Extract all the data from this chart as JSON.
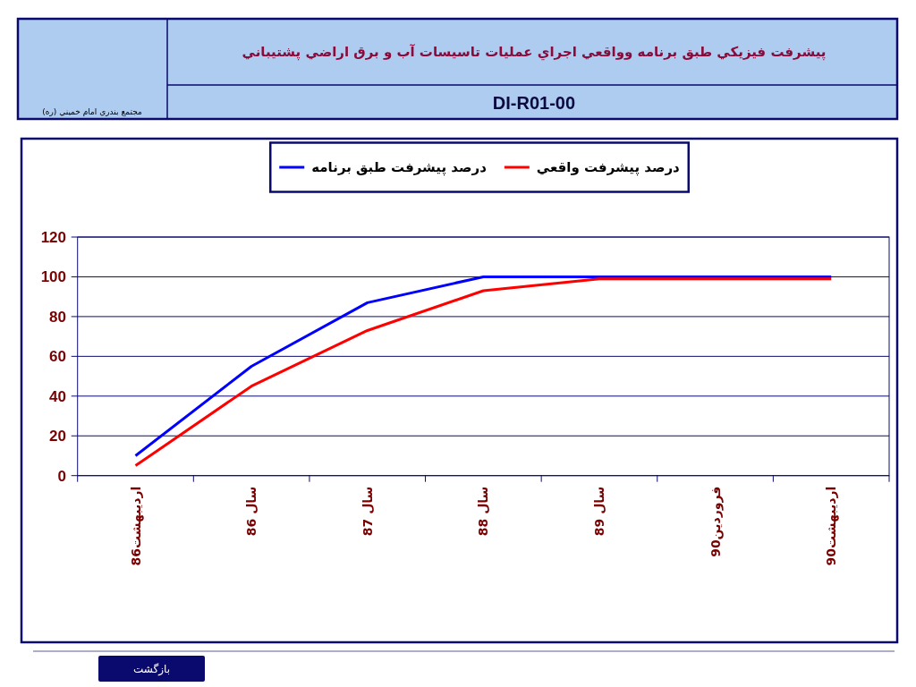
{
  "chart_data": {
    "type": "line",
    "title": "پيشرفت فيزيكي طبق برنامه وواقعي اجراي عمليات تاسيسات آب و برق اراضي پشتيباني",
    "subtitle": "DI-R01-00",
    "categories": [
      "ارديبهشت86",
      "سال 86",
      "سال 87",
      "سال 88",
      "سال 89",
      "فروردين90",
      "ارديبهشت90"
    ],
    "series": [
      {
        "name": "درصد پيشرفت طبق برنامه",
        "color": "#0000ff",
        "values": [
          10,
          55,
          87,
          100,
          100,
          100,
          100
        ]
      },
      {
        "name": "درصد پيشرفت واقعي",
        "color": "#ff0000",
        "values": [
          5,
          45,
          73,
          93,
          99,
          99,
          99
        ]
      }
    ],
    "ylim": [
      0,
      120
    ],
    "yticks": [
      0,
      20,
      40,
      60,
      80,
      100,
      120
    ],
    "grid": "y",
    "legend": "top",
    "marker": "none",
    "line_style": "solid",
    "annotations": [
      "مجتمع بندري امام خميني (ره)",
      "بازگشت"
    ]
  }
}
